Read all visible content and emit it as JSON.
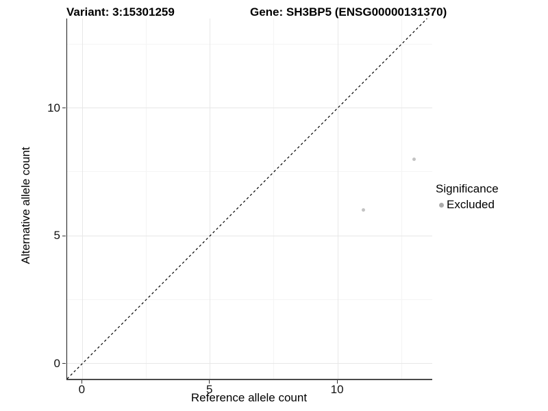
{
  "titles": {
    "left": "Variant: 3:15301259",
    "right": "Gene: SH3BP5 (ENSG00000131370)"
  },
  "chart_data": {
    "type": "scatter",
    "title": "Variant: 3:15301259  |  Gene: SH3BP5 (ENSG00000131370)",
    "xlabel": "Reference allele count",
    "ylabel": "Alternative allele count",
    "xlim": [
      -0.6,
      13.7
    ],
    "ylim": [
      -0.6,
      13.5
    ],
    "xticks": [
      0,
      5,
      10
    ],
    "yticks": [
      0,
      5,
      10
    ],
    "xticks_minor": [
      2.5,
      7.5,
      12.5
    ],
    "yticks_minor": [
      2.5,
      7.5,
      12.5
    ],
    "grid": true,
    "series": [
      {
        "name": "Excluded",
        "color": "#c3c3c3",
        "points": [
          {
            "x": 11,
            "y": 6
          },
          {
            "x": 13,
            "y": 8
          }
        ]
      }
    ],
    "reference_line": {
      "type": "identity",
      "slope": 1,
      "intercept": 0,
      "style": "dashed",
      "color": "#000000"
    },
    "legend": {
      "title": "Significance",
      "position": "right",
      "items": [
        {
          "label": "Excluded",
          "color": "#ababab"
        }
      ]
    }
  },
  "colors": {
    "grid_major": "#e7e7e7",
    "grid_minor": "#f4f4f4",
    "axis_line_x": "#4a4a4a",
    "axis_line_y": "#1a1a1a",
    "point": "#c3c3c3",
    "text": "#000000"
  }
}
